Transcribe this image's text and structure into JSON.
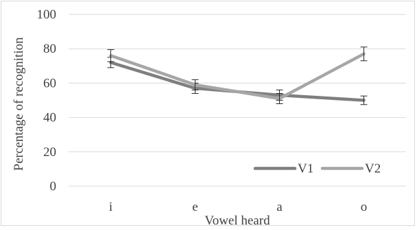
{
  "chart_data": {
    "type": "line",
    "title": "",
    "xlabel": "Vowel heard",
    "ylabel": "Percentage of recognition",
    "categories": [
      "i",
      "e",
      "a",
      "o"
    ],
    "ylim": [
      0,
      100
    ],
    "yticks": [
      0,
      20,
      40,
      60,
      80,
      100
    ],
    "grid": true,
    "legend_position": "bottom-right",
    "series": [
      {
        "name": "V1",
        "values": [
          72,
          57,
          53,
          50
        ],
        "error": [
          3,
          3,
          3,
          2.5
        ],
        "color": "#7f7f7f"
      },
      {
        "name": "V2",
        "values": [
          76,
          59,
          51,
          77
        ],
        "error": [
          3.5,
          3,
          3,
          4
        ],
        "color": "#a6a6a6"
      }
    ]
  }
}
